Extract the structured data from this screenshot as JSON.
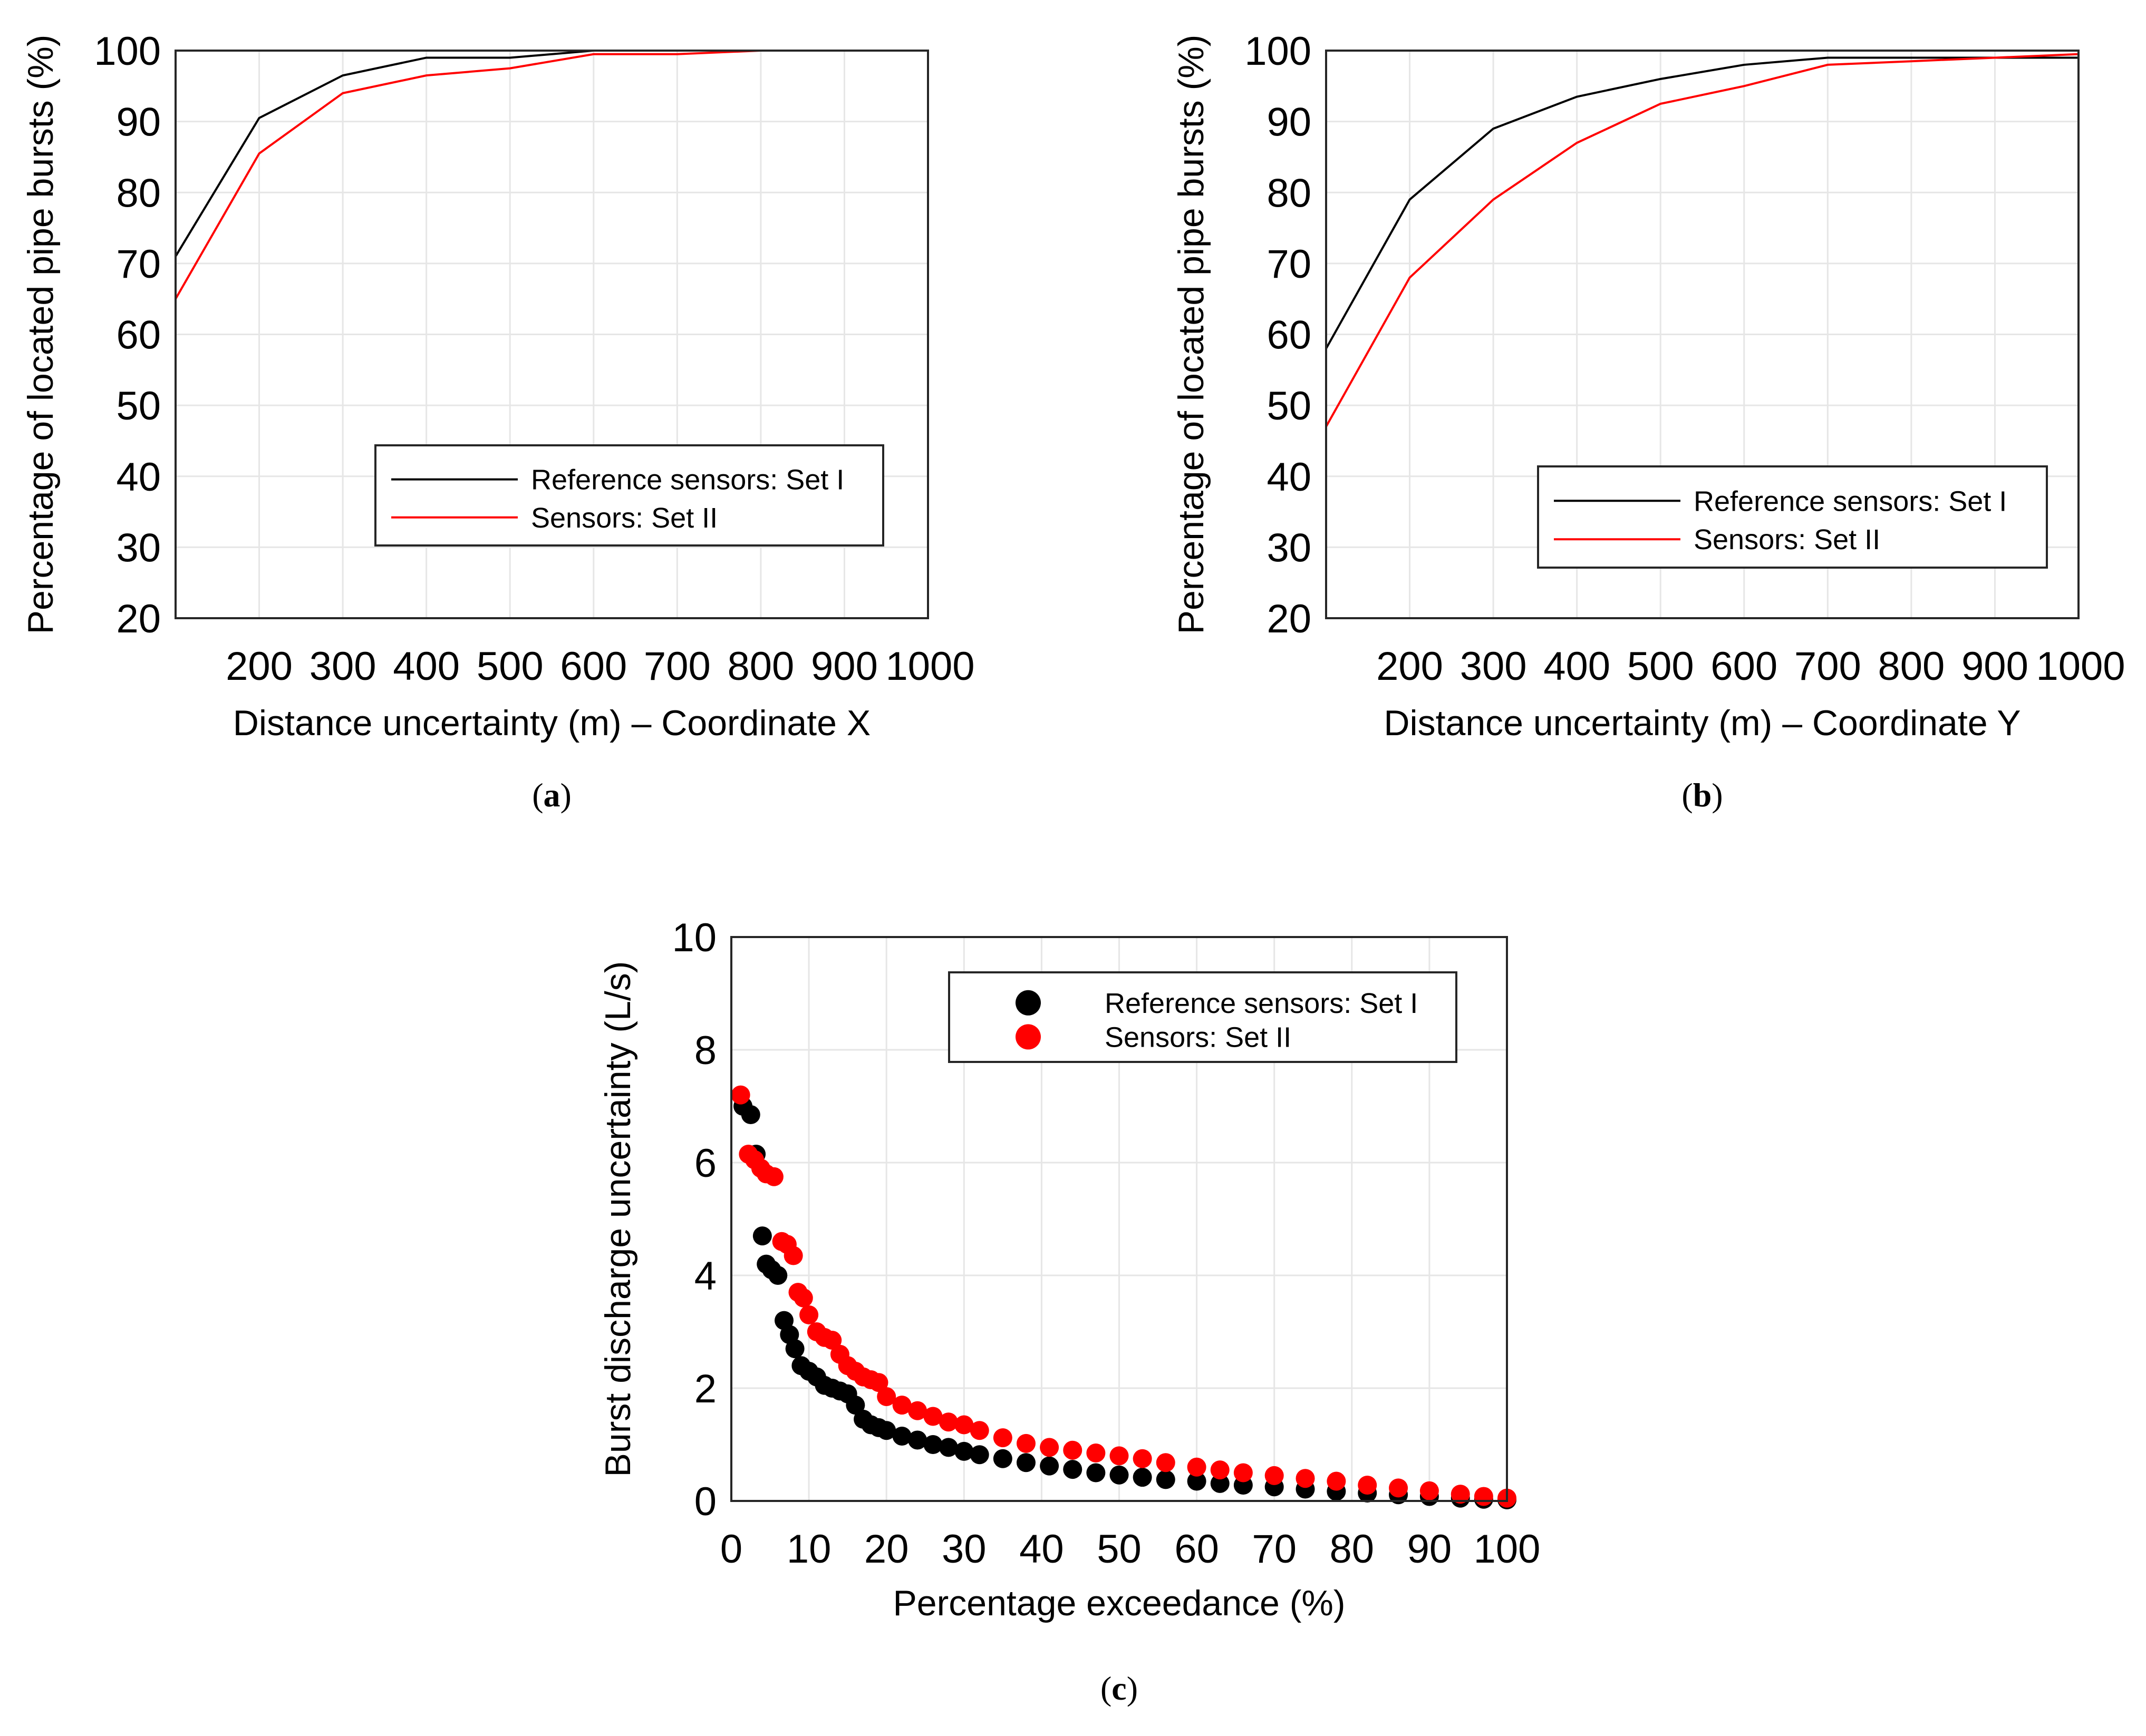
{
  "colors": {
    "set1": "#000000",
    "set2": "#ff0000",
    "grid": "#e6e6e6"
  },
  "chart_data": [
    {
      "id": "a",
      "type": "line",
      "panel_label": "a",
      "xlabel": "Distance uncertainty (m) – Coordinate X",
      "ylabel": "Percentage of located pipe bursts (%)",
      "xlim": [
        100,
        1000
      ],
      "ylim": [
        20,
        100
      ],
      "xticks": [
        200,
        300,
        400,
        500,
        600,
        700,
        800,
        900,
        1000
      ],
      "xtick_labels": [
        "200",
        "300",
        "400",
        "500",
        "600",
        "700",
        "800",
        "900",
        "1000"
      ],
      "yticks": [
        20,
        30,
        40,
        50,
        60,
        70,
        80,
        90,
        100
      ],
      "ytick_labels": [
        "20",
        "30",
        "40",
        "50",
        "60",
        "70",
        "80",
        "90",
        "100"
      ],
      "grid": true,
      "legend_position": "center-right",
      "series": [
        {
          "name": "Reference sensors: Set I",
          "color": "#000000",
          "x": [
            100,
            200,
            300,
            400,
            500,
            600,
            700,
            800,
            900,
            1000
          ],
          "y": [
            71,
            90.5,
            96.5,
            99,
            99,
            100,
            100,
            100,
            100,
            100
          ]
        },
        {
          "name": "Sensors: Set II",
          "color": "#ff0000",
          "x": [
            100,
            200,
            300,
            400,
            500,
            600,
            700,
            800,
            900,
            1000
          ],
          "y": [
            65,
            85.5,
            94,
            96.5,
            97.5,
            99.5,
            99.5,
            100,
            100,
            100
          ]
        }
      ]
    },
    {
      "id": "b",
      "type": "line",
      "panel_label": "b",
      "xlabel": "Distance uncertainty (m) – Coordinate Y",
      "ylabel": "Percentage of located pipe bursts (%)",
      "xlim": [
        100,
        1000
      ],
      "ylim": [
        20,
        100
      ],
      "xticks": [
        200,
        300,
        400,
        500,
        600,
        700,
        800,
        900,
        1000
      ],
      "xtick_labels": [
        "200",
        "300",
        "400",
        "500",
        "600",
        "700",
        "800",
        "900",
        "1000"
      ],
      "yticks": [
        20,
        30,
        40,
        50,
        60,
        70,
        80,
        90,
        100
      ],
      "ytick_labels": [
        "20",
        "30",
        "40",
        "50",
        "60",
        "70",
        "80",
        "90",
        "100"
      ],
      "grid": true,
      "legend_position": "bottom-right",
      "series": [
        {
          "name": "Reference sensors: Set I",
          "color": "#000000",
          "x": [
            100,
            200,
            300,
            400,
            500,
            600,
            700,
            800,
            900,
            1000
          ],
          "y": [
            58,
            79,
            89,
            93.5,
            96,
            98,
            99,
            99,
            99,
            99
          ]
        },
        {
          "name": "Sensors: Set II",
          "color": "#ff0000",
          "x": [
            100,
            200,
            300,
            400,
            500,
            600,
            700,
            800,
            900,
            1000
          ],
          "y": [
            47,
            68,
            79,
            87,
            92.5,
            95,
            98,
            98.5,
            99,
            99.5
          ]
        }
      ]
    },
    {
      "id": "c",
      "type": "scatter",
      "panel_label": "c",
      "xlabel": "Percentage exceedance (%)",
      "ylabel": "Burst discharge uncertainty (L/s)",
      "xlim": [
        0,
        100
      ],
      "ylim": [
        0,
        10
      ],
      "xticks": [
        0,
        10,
        20,
        30,
        40,
        50,
        60,
        70,
        80,
        90,
        100
      ],
      "xtick_labels": [
        "0",
        "10",
        "20",
        "30",
        "40",
        "50",
        "60",
        "70",
        "80",
        "90",
        "100"
      ],
      "yticks": [
        0,
        2,
        4,
        6,
        8,
        10
      ],
      "ytick_labels": [
        "0",
        "2",
        "4",
        "6",
        "8",
        "10"
      ],
      "grid": true,
      "legend_position": "top-right",
      "series": [
        {
          "name": "Reference sensors: Set I",
          "color": "#000000",
          "x": [
            1.5,
            2.5,
            3.2,
            4,
            4.5,
            5.2,
            6,
            6.8,
            7.5,
            8.2,
            9,
            10,
            11,
            12,
            13,
            14,
            15,
            16,
            17,
            18,
            19,
            20,
            22,
            24,
            26,
            28,
            30,
            32,
            35,
            38,
            41,
            44,
            47,
            50,
            53,
            56,
            60,
            63,
            66,
            70,
            74,
            78,
            82,
            86,
            90,
            94,
            97,
            100
          ],
          "y": [
            7,
            6.85,
            6.15,
            4.7,
            4.2,
            4.1,
            4.0,
            3.2,
            2.95,
            2.7,
            2.4,
            2.3,
            2.2,
            2.05,
            2.0,
            1.95,
            1.9,
            1.7,
            1.45,
            1.35,
            1.3,
            1.25,
            1.15,
            1.08,
            1.0,
            0.95,
            0.88,
            0.82,
            0.75,
            0.68,
            0.62,
            0.56,
            0.5,
            0.46,
            0.42,
            0.38,
            0.35,
            0.31,
            0.28,
            0.25,
            0.21,
            0.17,
            0.14,
            0.11,
            0.08,
            0.05,
            0.03,
            0.02
          ]
        },
        {
          "name": "Sensors: Set II",
          "color": "#ff0000",
          "x": [
            1.2,
            2.2,
            3,
            3.8,
            4.5,
            5.5,
            6.5,
            7.2,
            8,
            8.6,
            9.3,
            10,
            11,
            12,
            13,
            14,
            15,
            16,
            17,
            18,
            19,
            20,
            22,
            24,
            26,
            28,
            30,
            32,
            35,
            38,
            41,
            44,
            47,
            50,
            53,
            56,
            60,
            63,
            66,
            70,
            74,
            78,
            82,
            86,
            90,
            94,
            97,
            100
          ],
          "y": [
            7.2,
            6.15,
            6.05,
            5.9,
            5.8,
            5.75,
            4.6,
            4.55,
            4.35,
            3.7,
            3.6,
            3.3,
            3.0,
            2.9,
            2.85,
            2.6,
            2.4,
            2.3,
            2.2,
            2.15,
            2.1,
            1.85,
            1.7,
            1.6,
            1.5,
            1.4,
            1.35,
            1.25,
            1.12,
            1.02,
            0.95,
            0.9,
            0.85,
            0.8,
            0.75,
            0.68,
            0.6,
            0.55,
            0.5,
            0.45,
            0.4,
            0.35,
            0.28,
            0.23,
            0.18,
            0.12,
            0.08,
            0.05
          ]
        }
      ]
    }
  ]
}
